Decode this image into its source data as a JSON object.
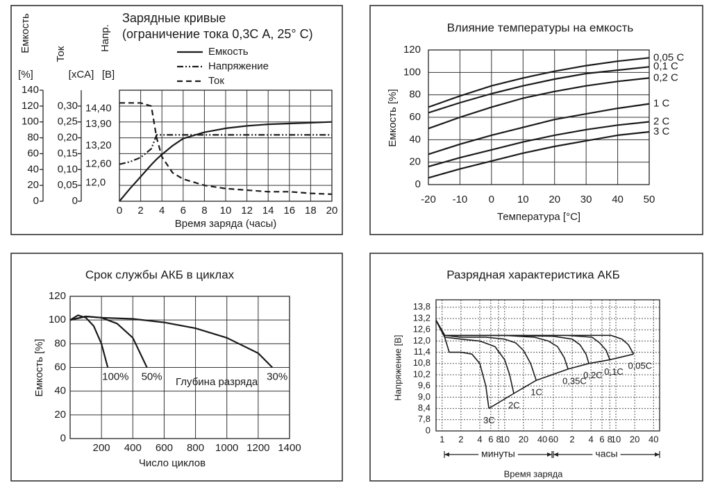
{
  "chart_data": [
    {
      "type": "line",
      "title": "Зарядные кривые",
      "subtitle": "(ограничение тока 0,3С А, 25° С)",
      "xlabel": "Время заряда (часы)",
      "ylabel": "Емкость",
      "yunit": "[%]",
      "y2label": "Ток",
      "y2unit": "[xCA]",
      "y3label": "Напр.",
      "y3unit": "[B]",
      "x": [
        0,
        1,
        2,
        3,
        3.5,
        4,
        5,
        6,
        8,
        10,
        12,
        14,
        16,
        18,
        20
      ],
      "xlim": [
        0,
        20
      ],
      "xticks": [
        0,
        2,
        4,
        6,
        8,
        10,
        12,
        14,
        16,
        18,
        20
      ],
      "ylim": [
        0,
        140
      ],
      "yticks": [
        0,
        20,
        40,
        60,
        80,
        100,
        120,
        140
      ],
      "y2lim": [
        0,
        0.35
      ],
      "y2ticks": [
        0,
        {
          "value": 0.05,
          "label": "0,05"
        },
        {
          "value": 0.1,
          "label": "0,10"
        },
        {
          "value": 0.15,
          "label": "0,15"
        },
        {
          "value": 0.2,
          "label": "0,20"
        },
        {
          "value": 0.25,
          "label": "0,25"
        },
        {
          "value": 0.3,
          "label": "0,30"
        }
      ],
      "y3lim": [
        11.4,
        15.0
      ],
      "y3ticks": [
        {
          "value": 12.0,
          "label": "12,0"
        },
        {
          "value": 12.6,
          "label": "12,60"
        },
        {
          "value": 13.2,
          "label": "13,20"
        },
        {
          "value": 13.9,
          "label": "13,90"
        },
        {
          "value": 14.4,
          "label": "14,40"
        }
      ],
      "grid": true,
      "legend": true,
      "color": "#1a1a1a",
      "series": [
        {
          "name": "Емкость",
          "dash": "solid",
          "values": [
            0,
            16,
            31,
            46,
            53,
            59,
            70,
            79,
            87,
            92,
            95,
            97,
            98,
            99,
            100
          ]
        },
        {
          "name": "Напряжение",
          "dash": "dashdotdot",
          "axis": "y3",
          "values": [
            12.6,
            12.68,
            12.82,
            13.1,
            13.55,
            13.55,
            13.55,
            13.55,
            13.55,
            13.55,
            13.55,
            13.55,
            13.55,
            13.55,
            13.55
          ]
        },
        {
          "name": "Ток",
          "dash": "dashed",
          "axis": "y2",
          "values": [
            0.31,
            0.31,
            0.31,
            0.3,
            0.2,
            0.14,
            0.09,
            0.07,
            0.05,
            0.04,
            0.035,
            0.03,
            0.03,
            0.025,
            0.022
          ]
        }
      ]
    },
    {
      "type": "line",
      "title": "Влияние температуры на емкость",
      "xlabel": "Температура [°C]",
      "ylabel": "Емкость [%]",
      "x": [
        -20,
        -10,
        0,
        10,
        20,
        30,
        40,
        50
      ],
      "xlim": [
        -20,
        50
      ],
      "xticks": [
        -20,
        -10,
        0,
        10,
        20,
        30,
        40,
        50
      ],
      "ylim": [
        0,
        120
      ],
      "yticks": [
        0,
        20,
        40,
        60,
        80,
        100,
        120
      ],
      "grid": true,
      "series_labels": true,
      "color": "#1a1a1a",
      "series": [
        {
          "name": "0,05 С",
          "values": [
            69,
            79,
            88,
            95,
            101,
            106,
            110,
            113
          ]
        },
        {
          "name": "0,1 С",
          "values": [
            64,
            73,
            81,
            88,
            94,
            99,
            102,
            105
          ]
        },
        {
          "name": "0,2 С",
          "values": [
            50,
            60,
            69,
            77,
            83,
            88,
            92,
            95
          ]
        },
        {
          "name": "1 С",
          "values": [
            27,
            36,
            44,
            51,
            58,
            63,
            68,
            72
          ]
        },
        {
          "name": "2 С",
          "values": [
            16,
            24,
            31,
            38,
            44,
            49,
            53,
            56
          ]
        },
        {
          "name": "3 С",
          "values": [
            6,
            14,
            21,
            28,
            34,
            39,
            44,
            47
          ]
        }
      ]
    },
    {
      "type": "line",
      "title": "Срок службы АКБ в циклах",
      "xlabel": "Число циклов",
      "ylabel": "Емкость [%]",
      "annotation": "Глубина разряда",
      "xlim": [
        0,
        1400
      ],
      "xticks": [
        200,
        400,
        600,
        800,
        1000,
        1200,
        1400
      ],
      "ylim": [
        0,
        120
      ],
      "yticks": [
        0,
        20,
        40,
        60,
        80,
        100,
        120
      ],
      "grid": true,
      "series_labels": true,
      "color": "#1a1a1a",
      "series": [
        {
          "name": "100%",
          "x": [
            0,
            50,
            100,
            150,
            200,
            240
          ],
          "values": [
            100,
            104,
            102,
            95,
            80,
            60
          ]
        },
        {
          "name": "50%",
          "x": [
            0,
            100,
            200,
            300,
            400,
            490
          ],
          "values": [
            100,
            103,
            102,
            97,
            85,
            60
          ]
        },
        {
          "name": "30%",
          "x": [
            0,
            100,
            200,
            400,
            600,
            800,
            1000,
            1200,
            1290
          ],
          "values": [
            100,
            103,
            102,
            101,
            98,
            93,
            85,
            72,
            60
          ]
        }
      ]
    },
    {
      "type": "line",
      "title": "Разрядная характеристика АКБ",
      "xlabel": "Время заряда",
      "ylabel": "Напряжение [B]",
      "x_range_labels": [
        "минуты",
        "часы"
      ],
      "xscale": "log",
      "xlim": [
        0.8,
        3000
      ],
      "xticks": [
        1,
        2,
        4,
        6,
        8,
        10,
        20,
        40,
        60,
        {
          "value": 120,
          "label": "2"
        },
        {
          "value": 240,
          "label": "4"
        },
        {
          "value": 360,
          "label": "6"
        },
        {
          "value": 480,
          "label": "8"
        },
        {
          "value": 600,
          "label": "10"
        },
        {
          "value": 1200,
          "label": "20"
        },
        {
          "value": 2400,
          "label": "40"
        }
      ],
      "ylim": [
        7.2,
        14.2
      ],
      "y_axis_break": true,
      "yticks": [
        0,
        {
          "value": 7.8,
          "label": "7,8"
        },
        {
          "value": 8.4,
          "label": "8,4"
        },
        {
          "value": 9.0,
          "label": "9,0"
        },
        {
          "value": 9.6,
          "label": "9,6"
        },
        {
          "value": 10.2,
          "label": "10,2"
        },
        {
          "value": 10.8,
          "label": "10,8"
        },
        {
          "value": 11.4,
          "label": "11,4"
        },
        {
          "value": 12.0,
          "label": "12,0"
        },
        {
          "value": 12.6,
          "label": "12,6"
        },
        {
          "value": 13.2,
          "label": "13,2"
        },
        {
          "value": 13.8,
          "label": "13,8"
        }
      ],
      "grid": true,
      "grid_style": "dotted",
      "series_labels": true,
      "color": "#1a1a1a",
      "series": [
        {
          "name": "3C",
          "x": [
            0.8,
            1.1,
            1.3,
            2,
            3,
            4,
            5,
            5.6
          ],
          "values": [
            13.1,
            12.2,
            11.4,
            11.4,
            11.3,
            10.8,
            9.6,
            8.4
          ]
        },
        {
          "name": "2C",
          "x": [
            0.8,
            1.1,
            2,
            4,
            7,
            10,
            12,
            14
          ],
          "values": [
            13.1,
            12.2,
            12.1,
            12.0,
            11.7,
            11.0,
            10.2,
            9.2
          ]
        },
        {
          "name": "1C",
          "x": [
            0.8,
            1.1,
            2,
            5,
            10,
            15,
            20,
            26,
            32
          ],
          "values": [
            13.1,
            12.3,
            12.2,
            12.2,
            12.1,
            11.9,
            11.5,
            10.8,
            9.9
          ]
        },
        {
          "name": "0,35C",
          "x": [
            0.8,
            1.1,
            2,
            10,
            30,
            50,
            70,
            90,
            103
          ],
          "values": [
            13.1,
            12.3,
            12.3,
            12.3,
            12.2,
            12.0,
            11.7,
            11.1,
            10.5
          ]
        },
        {
          "name": "0,2C",
          "x": [
            0.8,
            1.1,
            2,
            10,
            60,
            120,
            160,
            200,
            222
          ],
          "values": [
            13.1,
            12.3,
            12.3,
            12.3,
            12.25,
            12.1,
            11.8,
            11.3,
            10.8
          ]
        },
        {
          "name": "0,1C",
          "x": [
            0.8,
            1.1,
            2,
            10,
            100,
            250,
            330,
            420,
            480
          ],
          "values": [
            13.1,
            12.3,
            12.3,
            12.3,
            12.3,
            12.2,
            11.9,
            11.5,
            11.0
          ]
        },
        {
          "name": "0,05C",
          "x": [
            0.8,
            1.1,
            2,
            10,
            100,
            500,
            750,
            950,
            1150
          ],
          "values": [
            13.1,
            12.3,
            12.3,
            12.3,
            12.3,
            12.3,
            12.1,
            11.8,
            11.3
          ]
        },
        {
          "x": [
            5.6,
            14,
            32,
            103,
            222,
            480,
            1150
          ],
          "values": [
            8.4,
            9.2,
            9.9,
            10.5,
            10.8,
            11.0,
            11.3
          ]
        }
      ]
    }
  ]
}
